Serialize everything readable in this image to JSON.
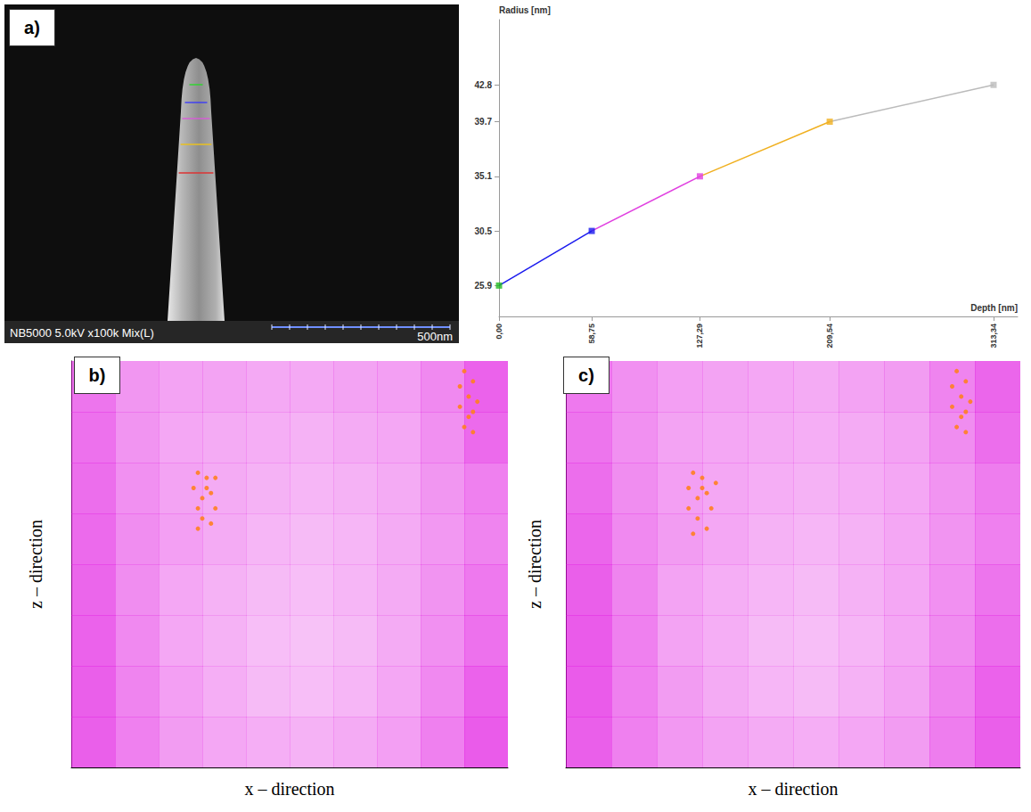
{
  "chart_data": [
    {
      "type": "line",
      "xlabel": "Depth [nm]",
      "ylabel": "Radius [nm]",
      "x": [
        0,
        58.75,
        127.29,
        209.54,
        313.34
      ],
      "values": [
        25.9,
        30.5,
        35.1,
        39.7,
        42.8
      ],
      "colors": [
        "#22bb22",
        "#1a1aee",
        "#e040e0",
        "#f0b020",
        "#bbbbbb"
      ],
      "marker": "square",
      "xlim": [
        0,
        328.6
      ],
      "ylim": [
        23.3,
        48.3
      ],
      "xticks": [
        {
          "value": 0,
          "label": "0,00"
        },
        {
          "value": 58.75,
          "label": "58,75"
        },
        {
          "value": 127.29,
          "label": "127,29"
        },
        {
          "value": 209.54,
          "label": "209,54"
        },
        {
          "value": 313.34,
          "label": "313,34"
        }
      ],
      "yticks": [
        25.9,
        30.5,
        35.1,
        39.7,
        42.8
      ],
      "grid": false
    },
    {
      "panel": "b)",
      "type": "heatmap",
      "xlabel": "x – direction",
      "ylabel": "z – direction",
      "xlim": [
        0,
        10
      ],
      "ylim": [
        0,
        8
      ],
      "tick_labels": false,
      "color": "#e010e0",
      "density_range": [
        0,
        100
      ],
      "density": [
        [
          72,
          55,
          48,
          48,
          45,
          45,
          48,
          50,
          62,
          82
        ],
        [
          74,
          56,
          46,
          44,
          42,
          40,
          44,
          46,
          58,
          78
        ],
        [
          76,
          58,
          48,
          44,
          40,
          38,
          40,
          44,
          55,
          66
        ],
        [
          78,
          60,
          50,
          44,
          38,
          36,
          38,
          44,
          54,
          64
        ],
        [
          80,
          60,
          46,
          40,
          36,
          34,
          38,
          44,
          56,
          70
        ],
        [
          82,
          62,
          46,
          40,
          34,
          32,
          36,
          44,
          58,
          74
        ],
        [
          84,
          64,
          50,
          42,
          36,
          34,
          38,
          46,
          62,
          82
        ],
        [
          84,
          66,
          52,
          46,
          42,
          40,
          44,
          50,
          66,
          86
        ]
      ],
      "clusters": {
        "color": "#ff7f20",
        "points": [
          [
            2.9,
            5.8
          ],
          [
            3.1,
            5.7
          ],
          [
            2.8,
            5.5
          ],
          [
            3.2,
            5.4
          ],
          [
            3.0,
            5.3
          ],
          [
            2.9,
            5.1
          ],
          [
            3.3,
            5.1
          ],
          [
            3.0,
            4.9
          ],
          [
            3.2,
            4.8
          ],
          [
            2.9,
            4.7
          ],
          [
            3.1,
            5.5
          ],
          [
            3.3,
            5.7
          ],
          [
            9.0,
            7.8
          ],
          [
            9.2,
            7.6
          ],
          [
            8.9,
            7.5
          ],
          [
            9.1,
            7.3
          ],
          [
            9.3,
            7.2
          ],
          [
            8.9,
            7.1
          ],
          [
            9.1,
            6.9
          ],
          [
            9.0,
            6.7
          ],
          [
            9.2,
            6.6
          ],
          [
            9.2,
            7.0
          ]
        ]
      }
    },
    {
      "panel": "c)",
      "type": "heatmap",
      "xlabel": "x – direction",
      "ylabel": "z – direction",
      "xlim": [
        0,
        10
      ],
      "ylim": [
        0,
        8
      ],
      "tick_labels": false,
      "color": "#e010e0",
      "density_range": [
        0,
        100
      ],
      "density": [
        [
          70,
          58,
          50,
          48,
          46,
          44,
          48,
          52,
          64,
          80
        ],
        [
          72,
          58,
          48,
          46,
          44,
          42,
          44,
          48,
          60,
          76
        ],
        [
          76,
          60,
          50,
          46,
          42,
          40,
          42,
          46,
          56,
          68
        ],
        [
          80,
          62,
          52,
          46,
          40,
          38,
          40,
          46,
          56,
          66
        ],
        [
          84,
          64,
          48,
          42,
          38,
          36,
          40,
          46,
          58,
          72
        ],
        [
          86,
          66,
          48,
          42,
          36,
          34,
          38,
          46,
          60,
          76
        ],
        [
          86,
          66,
          52,
          44,
          38,
          36,
          40,
          48,
          64,
          82
        ],
        [
          84,
          66,
          54,
          48,
          44,
          42,
          46,
          52,
          68,
          84
        ]
      ],
      "clusters": {
        "color": "#ff7f20",
        "points": [
          [
            2.8,
            5.8
          ],
          [
            3.0,
            5.7
          ],
          [
            2.7,
            5.5
          ],
          [
            3.1,
            5.4
          ],
          [
            2.9,
            5.3
          ],
          [
            2.7,
            5.1
          ],
          [
            3.2,
            5.1
          ],
          [
            2.9,
            4.9
          ],
          [
            3.1,
            4.7
          ],
          [
            2.8,
            4.6
          ],
          [
            3.0,
            5.5
          ],
          [
            3.3,
            5.6
          ],
          [
            8.6,
            7.8
          ],
          [
            8.8,
            7.6
          ],
          [
            8.5,
            7.5
          ],
          [
            8.7,
            7.3
          ],
          [
            8.9,
            7.2
          ],
          [
            8.5,
            7.1
          ],
          [
            8.7,
            6.9
          ],
          [
            8.6,
            6.7
          ],
          [
            8.8,
            6.6
          ],
          [
            8.8,
            7.0
          ]
        ]
      }
    }
  ],
  "sem_image": {
    "panel": "a)",
    "caption": "NB5000 5.0kV x100k Mix(L)",
    "scale_bar": "500nm",
    "line_colors": [
      "#22dd22",
      "#3333ff",
      "#dd55dd",
      "#e8c020",
      "#dd3333"
    ]
  }
}
